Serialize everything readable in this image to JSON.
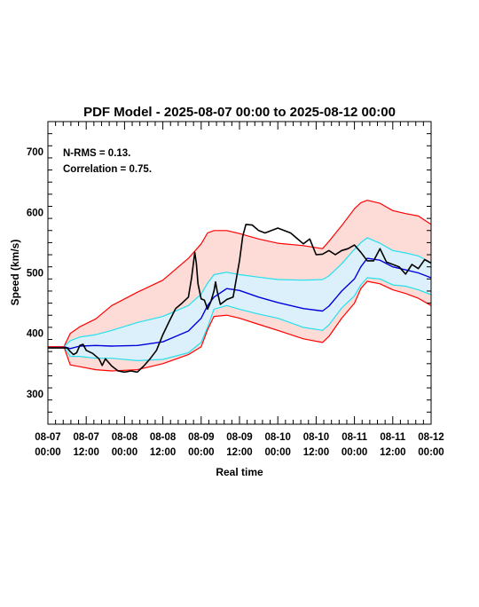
{
  "chart_data": {
    "type": "line",
    "title": "PDF Model - 2025-08-07 00:00 to 2025-08-12 00:00",
    "xlabel": "Real time",
    "ylabel": "Speed (km/s)",
    "xlim": [
      0,
      120
    ],
    "ylim": [
      250,
      750
    ],
    "x_unit": "hours since 08-07 00:00",
    "xticks": [
      {
        "x": 0,
        "line1": "08-07",
        "line2": "00:00"
      },
      {
        "x": 12,
        "line1": "08-07",
        "line2": "12:00"
      },
      {
        "x": 24,
        "line1": "08-08",
        "line2": "00:00"
      },
      {
        "x": 36,
        "line1": "08-08",
        "line2": "12:00"
      },
      {
        "x": 48,
        "line1": "08-09",
        "line2": "00:00"
      },
      {
        "x": 60,
        "line1": "08-09",
        "line2": "12:00"
      },
      {
        "x": 72,
        "line1": "08-10",
        "line2": "00:00"
      },
      {
        "x": 84,
        "line1": "08-10",
        "line2": "12:00"
      },
      {
        "x": 96,
        "line1": "08-11",
        "line2": "00:00"
      },
      {
        "x": 108,
        "line1": "08-11",
        "line2": "12:00"
      },
      {
        "x": 120,
        "line1": "08-12",
        "line2": "00:00"
      }
    ],
    "yticks": [
      300,
      400,
      500,
      600,
      700
    ],
    "annotations": [
      "N-RMS = 0.13.",
      "Correlation = 0.75."
    ],
    "colors": {
      "outer_band_fill": "#fddcd8",
      "inner_band_fill": "#dcf0fb",
      "outer_bounds": "#ff0000",
      "inner_bounds": "#22e0ee",
      "median": "#0000dd",
      "observed": "#000000"
    },
    "series": [
      {
        "role": "outer_upper",
        "color": "#ff0000",
        "x": [
          0,
          5,
          7,
          10,
          15,
          20,
          28,
          36,
          44,
          48,
          50,
          52,
          56,
          60,
          66,
          72,
          80,
          86,
          88,
          92,
          96,
          98,
          100,
          104,
          108,
          112,
          116,
          120
        ],
        "y": [
          378,
          378,
          400,
          411,
          424,
          446,
          468,
          488,
          524,
          548,
          566,
          570,
          570,
          565,
          556,
          549,
          545,
          540,
          552,
          578,
          606,
          616,
          620,
          615,
          603,
          598,
          594,
          580
        ]
      },
      {
        "role": "inner_upper",
        "color": "#22e0ee",
        "x": [
          0,
          5,
          7,
          10,
          15,
          20,
          28,
          36,
          44,
          48,
          50,
          52,
          56,
          60,
          66,
          72,
          80,
          86,
          88,
          92,
          96,
          98,
          100,
          104,
          108,
          112,
          116,
          120
        ],
        "y": [
          378,
          378,
          388,
          394,
          398,
          405,
          418,
          428,
          446,
          465,
          483,
          497,
          501,
          497,
          493,
          489,
          488,
          489,
          495,
          515,
          539,
          550,
          558,
          549,
          537,
          533,
          528,
          517
        ]
      },
      {
        "role": "median",
        "color": "#0000dd",
        "x": [
          0,
          5,
          7,
          10,
          15,
          20,
          28,
          36,
          44,
          48,
          50,
          52,
          56,
          60,
          66,
          72,
          80,
          86,
          88,
          92,
          96,
          98,
          100,
          104,
          108,
          112,
          116,
          120
        ],
        "y": [
          378,
          378,
          375,
          379,
          380,
          379,
          380,
          386,
          404,
          425,
          446,
          460,
          474,
          471,
          460,
          451,
          441,
          437,
          445,
          470,
          490,
          510,
          524,
          521,
          510,
          505,
          500,
          492
        ]
      },
      {
        "role": "inner_lower",
        "color": "#22e0ee",
        "x": [
          0,
          5,
          7,
          10,
          15,
          20,
          28,
          36,
          44,
          48,
          50,
          52,
          56,
          60,
          66,
          72,
          80,
          86,
          88,
          92,
          96,
          98,
          100,
          104,
          108,
          112,
          116,
          120
        ],
        "y": [
          378,
          378,
          362,
          362,
          359,
          359,
          355,
          357,
          368,
          385,
          410,
          440,
          446,
          440,
          432,
          425,
          410,
          405,
          414,
          442,
          462,
          480,
          492,
          490,
          480,
          478,
          472,
          464
        ]
      },
      {
        "role": "outer_lower",
        "color": "#ff0000",
        "x": [
          0,
          5,
          7,
          10,
          15,
          20,
          28,
          36,
          44,
          48,
          50,
          52,
          56,
          60,
          66,
          72,
          80,
          86,
          88,
          92,
          96,
          98,
          100,
          104,
          108,
          112,
          116,
          120
        ],
        "y": [
          378,
          378,
          348,
          345,
          340,
          338,
          340,
          350,
          365,
          378,
          406,
          428,
          430,
          425,
          415,
          405,
          391,
          385,
          395,
          425,
          450,
          474,
          486,
          482,
          472,
          466,
          458,
          446
        ]
      },
      {
        "role": "observed",
        "color": "#000000",
        "x": [
          0,
          6,
          7,
          8,
          9,
          10,
          11,
          12,
          14,
          16,
          17,
          18,
          20,
          22,
          24,
          26,
          28,
          30,
          32,
          34,
          36,
          38,
          40,
          42,
          44,
          45,
          46,
          46.5,
          47,
          48,
          49,
          50,
          51,
          52,
          52.5,
          53,
          54,
          56,
          58,
          60,
          61,
          62,
          64,
          66,
          68,
          70,
          72,
          74,
          76,
          78,
          80,
          82,
          84,
          86,
          88,
          90,
          92,
          94,
          96,
          98,
          100,
          102,
          104,
          106,
          108,
          110,
          112,
          114,
          116,
          118,
          120
        ],
        "y": [
          376,
          376,
          370,
          365,
          368,
          380,
          382,
          372,
          367,
          358,
          347,
          358,
          346,
          338,
          336,
          338,
          336,
          346,
          358,
          372,
          398,
          420,
          441,
          450,
          460,
          492,
          534,
          515,
          482,
          457,
          455,
          440,
          452,
          470,
          485,
          470,
          448,
          456,
          460,
          520,
          560,
          580,
          579,
          570,
          566,
          570,
          574,
          570,
          566,
          557,
          548,
          556,
          530,
          531,
          537,
          530,
          537,
          540,
          546,
          534,
          520,
          520,
          540,
          518,
          514,
          510,
          498,
          514,
          507,
          522,
          516
        ]
      }
    ]
  }
}
